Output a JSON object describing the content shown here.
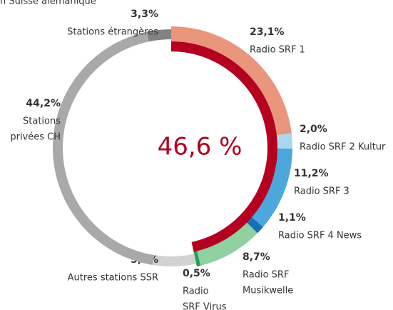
{
  "chart_data": {
    "type": "donut",
    "subtitle": "n Suisse alémanique",
    "center": {
      "value": 46.6,
      "label": "46,6 %",
      "color": "#b5001f"
    },
    "categories": [
      [
        "Radio SRF 1"
      ],
      [
        "Radio SRF 2 Kultur"
      ],
      [
        "Radio SRF 3"
      ],
      [
        "Radio SRF 4 News"
      ],
      [
        "Radio SRF",
        "Musikwelle"
      ],
      [
        "Radio",
        "SRF Virus"
      ],
      [
        "Autres stations SSR"
      ],
      [
        "Stations",
        "privées CH"
      ],
      [
        "Stations étrangères"
      ]
    ],
    "values": [
      23.1,
      2.0,
      11.2,
      1.1,
      8.7,
      0.5,
      5.9,
      44.2,
      3.3
    ],
    "value_labels": [
      "23,1%",
      "2,0%",
      "11,2%",
      "1,1%",
      "8,7%",
      "0,5%",
      "5,9%",
      "44,2%",
      "3,3%"
    ],
    "colors": [
      "#e9967c",
      "#a8d8ef",
      "#4ba7dc",
      "#1670b8",
      "#8fd1a1",
      "#2d9a5a",
      "#d2d2d2",
      "#a9a9a9",
      "#828282"
    ]
  }
}
